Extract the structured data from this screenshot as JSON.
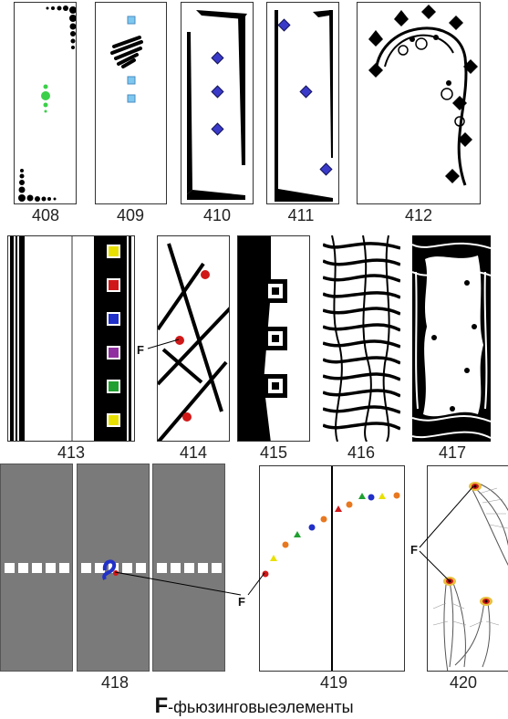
{
  "panels": {
    "p408": {
      "number": "408"
    },
    "p409": {
      "number": "409"
    },
    "p410": {
      "number": "410"
    },
    "p411": {
      "number": "411"
    },
    "p412": {
      "number": "412"
    },
    "p413": {
      "number": "413"
    },
    "p414": {
      "number": "414"
    },
    "p415": {
      "number": "415"
    },
    "p416": {
      "number": "416"
    },
    "p417": {
      "number": "417"
    },
    "p418": {
      "number": "418"
    },
    "p419": {
      "number": "419"
    },
    "p420": {
      "number": "420"
    }
  },
  "fusing_marker": "F",
  "footer": {
    "letter": "F",
    "text": "-фьюзинговыеэлементы"
  },
  "colors": {
    "panel_gray": "#7a7a7a",
    "accent_blue": "#3a3ac8",
    "accent_red": "#d01818",
    "accent_green": "#30c040",
    "tile_blue": "#7ec8f0"
  }
}
